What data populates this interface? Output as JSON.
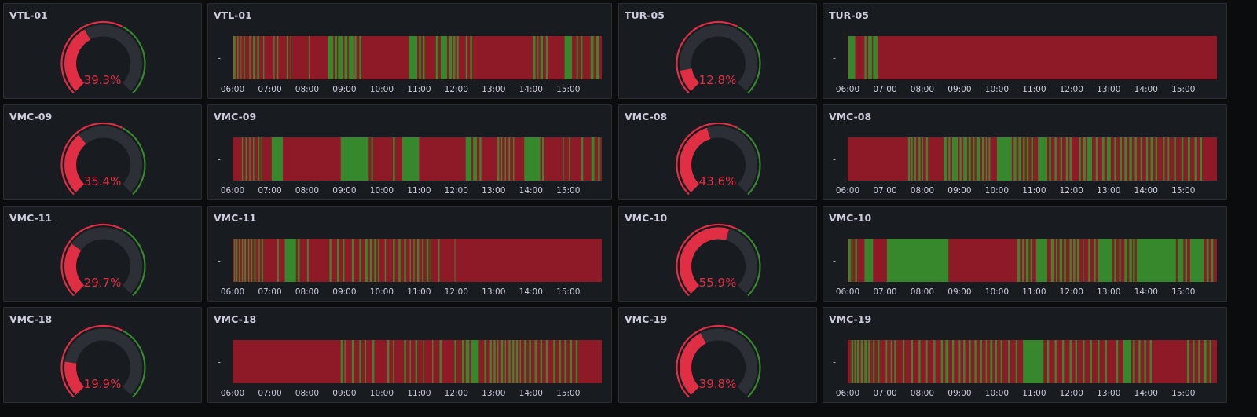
{
  "colors": {
    "on": "#37872d",
    "off": "#8e1927",
    "gauge_red": "#e02f44",
    "gauge_green": "#37872d",
    "gauge_track": "#2c2f35"
  },
  "time_axis": {
    "start_hour": 6,
    "end_hour": 15.9,
    "ticks": [
      "06:00",
      "07:00",
      "08:00",
      "09:00",
      "10:00",
      "11:00",
      "12:00",
      "13:00",
      "14:00",
      "15:00"
    ]
  },
  "row_label": "-",
  "machines": [
    {
      "name": "VTL-01",
      "value": 39.3,
      "value_text": "39.3%",
      "segments": [
        [
          6.02,
          6.08
        ],
        [
          6.13,
          6.16
        ],
        [
          6.22,
          6.24
        ],
        [
          6.3,
          6.33
        ],
        [
          6.45,
          6.48
        ],
        [
          6.55,
          6.59
        ],
        [
          6.66,
          6.71
        ],
        [
          6.82,
          6.85
        ],
        [
          7.1,
          7.13
        ],
        [
          7.2,
          7.23
        ],
        [
          7.45,
          7.48
        ],
        [
          7.55,
          7.58
        ],
        [
          8.04,
          8.06
        ],
        [
          8.57,
          8.7
        ],
        [
          8.74,
          8.8
        ],
        [
          8.83,
          8.95
        ],
        [
          9.0,
          9.08
        ],
        [
          9.12,
          9.24
        ],
        [
          9.27,
          9.32
        ],
        [
          9.4,
          9.45
        ],
        [
          10.72,
          10.95
        ],
        [
          11.0,
          11.05
        ],
        [
          11.1,
          11.15
        ],
        [
          11.45,
          11.52
        ],
        [
          11.58,
          11.75
        ],
        [
          11.8,
          11.88
        ],
        [
          11.92,
          11.97
        ],
        [
          12.02,
          12.06
        ],
        [
          12.25,
          12.28
        ],
        [
          12.37,
          12.42
        ],
        [
          14.05,
          14.12
        ],
        [
          14.18,
          14.2
        ],
        [
          14.25,
          14.32
        ],
        [
          14.4,
          14.45
        ],
        [
          14.9,
          15.1
        ],
        [
          15.22,
          15.26
        ],
        [
          15.33,
          15.38
        ],
        [
          15.6,
          15.68
        ],
        [
          15.75,
          15.82
        ]
      ]
    },
    {
      "name": "TUR-05",
      "value": 12.8,
      "value_text": "12.8%",
      "segments": [
        [
          6.02,
          6.2
        ],
        [
          6.45,
          6.5
        ],
        [
          6.55,
          6.65
        ],
        [
          6.68,
          6.8
        ]
      ]
    },
    {
      "name": "VMC-09",
      "value": 35.4,
      "value_text": "35.4%",
      "segments": [
        [
          6.25,
          6.28
        ],
        [
          6.35,
          6.38
        ],
        [
          6.45,
          6.48
        ],
        [
          6.55,
          6.58
        ],
        [
          6.68,
          6.72
        ],
        [
          6.77,
          6.8
        ],
        [
          7.05,
          7.35
        ],
        [
          8.9,
          9.65
        ],
        [
          9.72,
          9.76
        ],
        [
          10.3,
          10.35
        ],
        [
          10.55,
          11.0
        ],
        [
          12.25,
          12.4
        ],
        [
          12.45,
          12.55
        ],
        [
          12.62,
          12.67
        ],
        [
          13.1,
          13.15
        ],
        [
          13.2,
          13.23
        ],
        [
          13.3,
          13.33
        ],
        [
          13.4,
          13.44
        ],
        [
          13.52,
          13.55
        ],
        [
          13.82,
          14.25
        ],
        [
          14.3,
          14.35
        ],
        [
          14.85,
          14.88
        ],
        [
          15.02,
          15.05
        ],
        [
          15.35,
          15.4
        ],
        [
          15.62,
          15.7
        ],
        [
          15.8,
          15.85
        ]
      ]
    },
    {
      "name": "VMC-08",
      "value": 43.6,
      "value_text": "43.6%",
      "segments": [
        [
          7.62,
          7.67
        ],
        [
          7.7,
          7.74
        ],
        [
          7.78,
          7.83
        ],
        [
          7.9,
          7.95
        ],
        [
          7.98,
          8.02
        ],
        [
          8.1,
          8.15
        ],
        [
          8.58,
          8.66
        ],
        [
          8.7,
          8.75
        ],
        [
          8.8,
          8.95
        ],
        [
          9.0,
          9.05
        ],
        [
          9.1,
          9.2
        ],
        [
          9.24,
          9.3
        ],
        [
          9.35,
          9.4
        ],
        [
          9.45,
          9.55
        ],
        [
          9.6,
          9.65
        ],
        [
          9.7,
          9.73
        ],
        [
          9.78,
          9.82
        ],
        [
          10.0,
          10.4
        ],
        [
          10.45,
          10.52
        ],
        [
          10.58,
          10.65
        ],
        [
          10.7,
          10.75
        ],
        [
          10.8,
          10.85
        ],
        [
          10.92,
          10.97
        ],
        [
          11.1,
          11.35
        ],
        [
          11.4,
          11.45
        ],
        [
          11.55,
          11.6
        ],
        [
          11.7,
          11.75
        ],
        [
          11.85,
          11.9
        ],
        [
          11.95,
          12.0
        ],
        [
          12.2,
          12.25
        ],
        [
          12.32,
          12.38
        ],
        [
          12.42,
          12.55
        ],
        [
          12.65,
          12.7
        ],
        [
          12.82,
          12.88
        ],
        [
          12.95,
          13.05
        ],
        [
          13.15,
          13.2
        ],
        [
          13.3,
          13.35
        ],
        [
          13.42,
          13.48
        ],
        [
          13.55,
          13.62
        ],
        [
          13.7,
          13.75
        ],
        [
          13.85,
          13.9
        ],
        [
          14.0,
          14.05
        ],
        [
          14.12,
          14.18
        ],
        [
          14.25,
          14.3
        ],
        [
          14.45,
          14.5
        ],
        [
          14.58,
          14.62
        ],
        [
          14.75,
          14.8
        ],
        [
          14.95,
          15.0
        ],
        [
          15.12,
          15.18
        ],
        [
          15.3,
          15.35
        ],
        [
          15.45,
          15.5
        ]
      ]
    },
    {
      "name": "VMC-11",
      "value": 29.7,
      "value_text": "29.7%",
      "segments": [
        [
          6.04,
          6.07
        ],
        [
          6.1,
          6.13
        ],
        [
          6.17,
          6.2
        ],
        [
          6.25,
          6.28
        ],
        [
          6.32,
          6.36
        ],
        [
          6.42,
          6.45
        ],
        [
          6.5,
          6.53
        ],
        [
          6.58,
          6.62
        ],
        [
          6.7,
          6.73
        ],
        [
          6.78,
          6.82
        ],
        [
          7.2,
          7.24
        ],
        [
          7.4,
          7.7
        ],
        [
          7.75,
          7.8
        ],
        [
          8.0,
          8.04
        ],
        [
          8.6,
          8.65
        ],
        [
          8.8,
          8.85
        ],
        [
          8.95,
          9.0
        ],
        [
          9.2,
          9.25
        ],
        [
          9.4,
          9.45
        ],
        [
          9.55,
          9.62
        ],
        [
          9.68,
          9.74
        ],
        [
          9.8,
          9.85
        ],
        [
          9.9,
          9.93
        ],
        [
          10.08,
          10.11
        ],
        [
          10.3,
          10.35
        ],
        [
          10.45,
          10.5
        ],
        [
          10.6,
          10.65
        ],
        [
          10.75,
          10.78
        ],
        [
          10.85,
          10.88
        ],
        [
          10.95,
          11.0
        ],
        [
          11.08,
          11.12
        ],
        [
          11.2,
          11.25
        ],
        [
          11.3,
          11.33
        ],
        [
          11.52,
          11.55
        ],
        [
          11.95,
          11.97
        ]
      ]
    },
    {
      "name": "VMC-10",
      "value": 55.9,
      "value_text": "55.9%",
      "segments": [
        [
          6.02,
          6.08
        ],
        [
          6.1,
          6.13
        ],
        [
          6.2,
          6.25
        ],
        [
          6.45,
          6.68
        ],
        [
          7.05,
          8.7
        ],
        [
          10.55,
          10.62
        ],
        [
          10.68,
          10.72
        ],
        [
          10.78,
          10.85
        ],
        [
          10.9,
          10.95
        ],
        [
          11.05,
          11.35
        ],
        [
          11.45,
          11.52
        ],
        [
          11.58,
          11.62
        ],
        [
          11.68,
          11.75
        ],
        [
          11.8,
          11.85
        ],
        [
          11.95,
          12.0
        ],
        [
          12.05,
          12.1
        ],
        [
          12.15,
          12.2
        ],
        [
          12.3,
          12.33
        ],
        [
          12.45,
          12.5
        ],
        [
          12.6,
          12.65
        ],
        [
          12.72,
          13.1
        ],
        [
          13.15,
          13.2
        ],
        [
          13.28,
          13.32
        ],
        [
          13.42,
          13.5
        ],
        [
          13.55,
          13.62
        ],
        [
          13.65,
          13.7
        ],
        [
          13.75,
          14.8
        ],
        [
          14.85,
          15.0
        ],
        [
          15.05,
          15.1
        ],
        [
          15.18,
          15.55
        ],
        [
          15.62,
          15.68
        ],
        [
          15.75,
          15.8
        ]
      ]
    },
    {
      "name": "VMC-18",
      "value": 19.9,
      "value_text": "19.9%",
      "segments": [
        [
          8.9,
          8.95
        ],
        [
          9.0,
          9.03
        ],
        [
          9.2,
          9.25
        ],
        [
          9.4,
          9.45
        ],
        [
          9.55,
          9.58
        ],
        [
          9.75,
          9.8
        ],
        [
          10.15,
          10.2
        ],
        [
          10.3,
          10.33
        ],
        [
          10.6,
          10.65
        ],
        [
          10.75,
          10.78
        ],
        [
          10.9,
          10.95
        ],
        [
          11.1,
          11.13
        ],
        [
          11.35,
          11.38
        ],
        [
          11.55,
          11.6
        ],
        [
          11.95,
          12.0
        ],
        [
          12.15,
          12.2
        ],
        [
          12.25,
          12.35
        ],
        [
          12.4,
          12.6
        ],
        [
          12.75,
          12.8
        ],
        [
          12.9,
          12.95
        ],
        [
          13.0,
          13.05
        ],
        [
          13.1,
          13.13
        ],
        [
          13.2,
          13.25
        ],
        [
          13.3,
          13.33
        ],
        [
          13.4,
          13.45
        ],
        [
          13.5,
          13.55
        ],
        [
          13.6,
          13.65
        ],
        [
          13.7,
          13.73
        ],
        [
          13.82,
          13.88
        ],
        [
          13.95,
          14.0
        ],
        [
          14.1,
          14.15
        ],
        [
          14.25,
          14.3
        ],
        [
          14.4,
          14.45
        ],
        [
          14.6,
          14.65
        ],
        [
          14.75,
          14.8
        ],
        [
          14.9,
          14.95
        ],
        [
          15.05,
          15.1
        ],
        [
          15.2,
          15.25
        ]
      ]
    },
    {
      "name": "VMC-19",
      "value": 39.8,
      "value_text": "39.8%",
      "segments": [
        [
          6.1,
          6.15
        ],
        [
          6.18,
          6.22
        ],
        [
          6.25,
          6.3
        ],
        [
          6.35,
          6.4
        ],
        [
          6.45,
          6.52
        ],
        [
          6.55,
          6.6
        ],
        [
          6.68,
          6.72
        ],
        [
          6.8,
          6.85
        ],
        [
          7.02,
          7.06
        ],
        [
          7.15,
          7.18
        ],
        [
          7.25,
          7.3
        ],
        [
          7.48,
          7.52
        ],
        [
          7.7,
          7.75
        ],
        [
          7.9,
          7.95
        ],
        [
          8.1,
          8.14
        ],
        [
          8.3,
          8.35
        ],
        [
          8.5,
          8.55
        ],
        [
          8.62,
          8.7
        ],
        [
          8.8,
          8.85
        ],
        [
          8.98,
          9.02
        ],
        [
          9.1,
          9.15
        ],
        [
          9.25,
          9.3
        ],
        [
          9.4,
          9.45
        ],
        [
          9.55,
          9.6
        ],
        [
          9.7,
          9.73
        ],
        [
          9.82,
          9.88
        ],
        [
          9.95,
          10.0
        ],
        [
          10.1,
          10.15
        ],
        [
          10.3,
          10.35
        ],
        [
          10.5,
          10.55
        ],
        [
          10.7,
          11.25
        ],
        [
          11.35,
          11.4
        ],
        [
          11.55,
          11.6
        ],
        [
          11.75,
          11.8
        ],
        [
          11.95,
          12.0
        ],
        [
          12.1,
          12.15
        ],
        [
          12.3,
          12.35
        ],
        [
          12.5,
          12.55
        ],
        [
          12.7,
          12.75
        ],
        [
          12.9,
          12.95
        ],
        [
          13.2,
          13.25
        ],
        [
          13.38,
          13.6
        ],
        [
          13.65,
          13.7
        ],
        [
          13.8,
          13.85
        ],
        [
          13.95,
          14.0
        ],
        [
          14.1,
          14.15
        ],
        [
          15.1,
          15.15
        ],
        [
          15.25,
          15.3
        ],
        [
          15.4,
          15.45
        ],
        [
          15.55,
          15.62
        ],
        [
          15.7,
          15.75
        ]
      ]
    }
  ]
}
